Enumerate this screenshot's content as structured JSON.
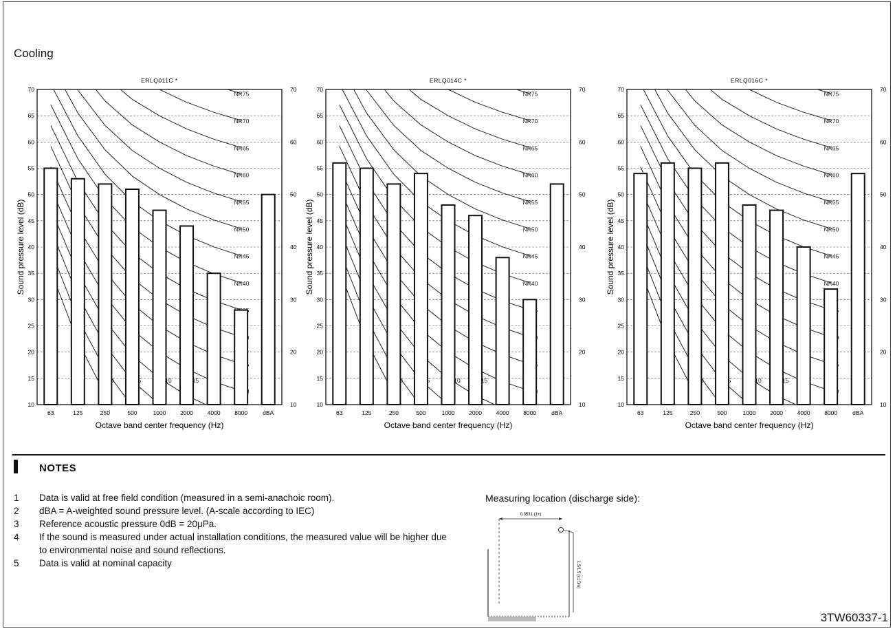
{
  "section_title": "Cooling",
  "reference_code": "3TW60337-1",
  "notes": {
    "heading": "NOTES",
    "items": [
      {
        "num": "1",
        "text": "Data is valid at free field condition (measured in a semi-anachoic room)."
      },
      {
        "num": "2",
        "text": "dBA = A-weighted sound pressure level. (A-scale according to IEC)"
      },
      {
        "num": "3",
        "text": "Reference acoustic pressure 0dB = 20μPa."
      },
      {
        "num": "4",
        "text": "If the sound is measured under actual installation conditions, the measured value will be higher due to environmental noise and sound reflections."
      },
      {
        "num": "5",
        "text": "Data is valid at nominal capacity"
      }
    ]
  },
  "measuring": {
    "label": "Measuring location (discharge side):",
    "dim_top": "0.3531 (1+)",
    "dim_side": "1.5/1.5 (c1.5m)"
  },
  "chart_data": [
    {
      "type": "bar",
      "title": "ERLQ011C *",
      "categories": [
        "63",
        "125",
        "250",
        "500",
        "1000",
        "2000",
        "4000",
        "8000",
        "dBA"
      ],
      "values": [
        55,
        53,
        52,
        51,
        47,
        44,
        35,
        28,
        50
      ],
      "xlabel": "Octave band center frequency (Hz)",
      "ylabel": "Sound pressure level (dB)",
      "ylim": [
        10,
        70
      ],
      "yticks": [
        10,
        15,
        20,
        25,
        30,
        35,
        40,
        45,
        50,
        55,
        60,
        65,
        70
      ],
      "right_ticks": [
        10,
        20,
        30,
        40,
        50,
        60,
        70
      ],
      "nr_curves": [
        "NR0",
        "NR5",
        "NR10",
        "NR15",
        "NR20",
        "NR25",
        "NR30",
        "NR35",
        "NR40",
        "NR45",
        "NR50",
        "NR55",
        "NR60",
        "NR65",
        "NR70",
        "NR75"
      ],
      "grid": true
    },
    {
      "type": "bar",
      "title": "ERLQ014C *",
      "categories": [
        "63",
        "125",
        "250",
        "500",
        "1000",
        "2000",
        "4000",
        "8000",
        "dBA"
      ],
      "values": [
        56,
        55,
        52,
        54,
        48,
        46,
        38,
        30,
        52
      ],
      "xlabel": "Octave band center frequency (Hz)",
      "ylabel": "Sound pressure level (dB)",
      "ylim": [
        10,
        70
      ],
      "yticks": [
        10,
        15,
        20,
        25,
        30,
        35,
        40,
        45,
        50,
        55,
        60,
        65,
        70
      ],
      "right_ticks": [
        10,
        20,
        30,
        40,
        50,
        60,
        70
      ],
      "nr_curves": [
        "NR0",
        "NR5",
        "NR10",
        "NR15",
        "NR20",
        "NR25",
        "NR30",
        "NR35",
        "NR40",
        "NR45",
        "NR50",
        "NR55",
        "NR60",
        "NR65",
        "NR70",
        "NR75"
      ],
      "grid": true
    },
    {
      "type": "bar",
      "title": "ERLQ016C *",
      "categories": [
        "63",
        "125",
        "250",
        "500",
        "1000",
        "2000",
        "4000",
        "8000",
        "dBA"
      ],
      "values": [
        54,
        56,
        55,
        56,
        48,
        47,
        40,
        32,
        54
      ],
      "xlabel": "Octave band center frequency (Hz)",
      "ylabel": "Sound pressure level (dB)",
      "ylim": [
        10,
        70
      ],
      "yticks": [
        10,
        15,
        20,
        25,
        30,
        35,
        40,
        45,
        50,
        55,
        60,
        65,
        70
      ],
      "right_ticks": [
        10,
        20,
        30,
        40,
        50,
        60,
        70
      ],
      "nr_curves": [
        "NR0",
        "NR5",
        "NR10",
        "NR15",
        "NR20",
        "NR25",
        "NR30",
        "NR35",
        "NR40",
        "NR45",
        "NR50",
        "NR55",
        "NR60",
        "NR65",
        "NR70",
        "NR75"
      ],
      "grid": true
    }
  ]
}
